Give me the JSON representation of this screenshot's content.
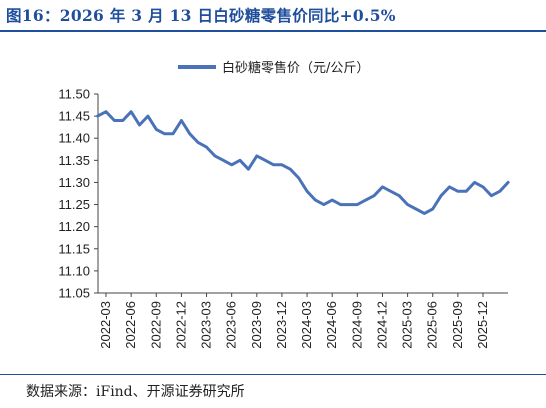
{
  "header": {
    "title": "图16：2026 年 3 月 13 日白砂糖零售价同比+0.5%"
  },
  "footer": {
    "source": "数据来源：iFind、开源证券研究所"
  },
  "chart_data": {
    "type": "line",
    "title": "",
    "xlabel": "",
    "ylabel": "",
    "ylim": [
      11.05,
      11.5
    ],
    "yticks": [
      "11.05",
      "11.10",
      "11.15",
      "11.20",
      "11.25",
      "11.30",
      "11.35",
      "11.40",
      "11.45",
      "11.50"
    ],
    "xticks": [
      "2022-03",
      "2022-06",
      "2022-09",
      "2022-12",
      "2023-03",
      "2023-06",
      "2023-09",
      "2023-12",
      "2024-03",
      "2024-06",
      "2024-09",
      "2024-12",
      "2025-03",
      "2025-06",
      "2025-09",
      "2025-12"
    ],
    "grid": false,
    "legend": "top-center",
    "series": [
      {
        "name": "白砂糖零售价（元/公斤）",
        "color": "#4a72b8",
        "x": [
          "2022-02",
          "2022-03",
          "2022-04",
          "2022-05",
          "2022-06",
          "2022-07",
          "2022-08",
          "2022-09",
          "2022-10",
          "2022-11",
          "2022-12",
          "2023-01",
          "2023-02",
          "2023-03",
          "2023-04",
          "2023-05",
          "2023-06",
          "2023-07",
          "2023-08",
          "2023-09",
          "2023-10",
          "2023-11",
          "2023-12",
          "2024-01",
          "2024-02",
          "2024-03",
          "2024-04",
          "2024-05",
          "2024-06",
          "2024-07",
          "2024-08",
          "2024-09",
          "2024-10",
          "2024-11",
          "2024-12",
          "2025-01",
          "2025-02",
          "2025-03",
          "2025-04",
          "2025-05",
          "2025-06",
          "2025-07",
          "2025-08",
          "2025-09",
          "2025-10",
          "2025-11",
          "2025-12",
          "2026-01",
          "2026-02",
          "2026-03"
        ],
        "values": [
          11.45,
          11.46,
          11.44,
          11.44,
          11.46,
          11.43,
          11.45,
          11.42,
          11.41,
          11.41,
          11.44,
          11.41,
          11.39,
          11.38,
          11.36,
          11.35,
          11.34,
          11.35,
          11.33,
          11.36,
          11.35,
          11.34,
          11.34,
          11.33,
          11.31,
          11.28,
          11.26,
          11.25,
          11.26,
          11.25,
          11.25,
          11.25,
          11.26,
          11.27,
          11.29,
          11.28,
          11.27,
          11.25,
          11.24,
          11.23,
          11.24,
          11.27,
          11.29,
          11.28,
          11.28,
          11.3,
          11.29,
          11.27,
          11.28,
          11.3
        ]
      }
    ]
  }
}
